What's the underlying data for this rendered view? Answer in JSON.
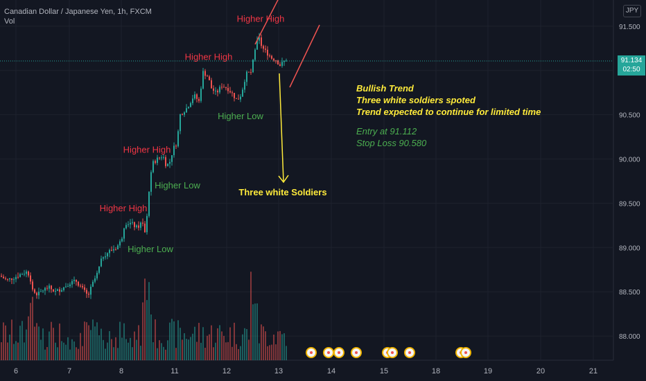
{
  "legend": {
    "symbol": "Canadian Dollar / Japanese Yen, 1h, FXCM",
    "indicator": "Vol"
  },
  "currency": "JPY",
  "last_price": {
    "value": "91.134",
    "countdown": "02:50"
  },
  "note": {
    "line1": "Bullish Trend",
    "line2": "Three white soldiers spoted",
    "line3": "Trend expected to continue for limited time",
    "line4": "Entry at 91.112",
    "line5": "Stop Loss 90.580"
  },
  "colors": {
    "background": "#131722",
    "up": "#26a69a",
    "down": "#ef5350",
    "high_label": "#f23645",
    "low_label": "#4caf50",
    "arrow": "#ffeb3b"
  },
  "chart_data": {
    "type": "candlestick",
    "title": "Canadian Dollar / Japanese Yen, 1h, FXCM",
    "ylim": [
      87.7,
      91.73
    ],
    "y_ticks": [
      91.5,
      91.0,
      90.5,
      90.0,
      89.5,
      89.0,
      88.5,
      88.0
    ],
    "y_tick_labels": [
      "91.500",
      "91.000",
      "90.500",
      "90.000",
      "89.500",
      "89.000",
      "88.500",
      "88.000"
    ],
    "x_ticks": [
      6,
      7,
      8,
      11,
      12,
      13,
      14,
      15,
      18,
      19,
      20,
      21
    ],
    "x_tick_labels": [
      "6",
      "7",
      "8",
      "11",
      "12",
      "13",
      "14",
      "15",
      "18",
      "19",
      "20",
      "21"
    ],
    "close_path": [
      [
        0,
        88.68
      ],
      [
        10,
        88.63
      ],
      [
        20,
        88.66
      ],
      [
        30,
        88.7
      ],
      [
        40,
        88.73
      ],
      [
        44,
        88.62
      ],
      [
        48,
        88.5
      ],
      [
        55,
        88.47
      ],
      [
        62,
        88.52
      ],
      [
        70,
        88.55
      ],
      [
        80,
        88.5
      ],
      [
        90,
        88.54
      ],
      [
        100,
        88.6
      ],
      [
        110,
        88.62
      ],
      [
        120,
        88.52
      ],
      [
        127,
        88.45
      ],
      [
        133,
        88.58
      ],
      [
        140,
        88.7
      ],
      [
        148,
        88.9
      ],
      [
        158,
        88.96
      ],
      [
        168,
        89.0
      ],
      [
        175,
        89.08
      ],
      [
        180,
        89.28
      ],
      [
        190,
        89.27
      ],
      [
        198,
        89.22
      ],
      [
        205,
        89.29
      ],
      [
        210,
        89.14
      ],
      [
        215,
        89.65
      ],
      [
        220,
        89.95
      ],
      [
        227,
        90.0
      ],
      [
        235,
        90.04
      ],
      [
        240,
        89.92
      ],
      [
        245,
        89.97
      ],
      [
        250,
        90.12
      ],
      [
        255,
        90.18
      ],
      [
        260,
        90.5
      ],
      [
        270,
        90.58
      ],
      [
        280,
        90.72
      ],
      [
        287,
        90.65
      ],
      [
        293,
        90.98
      ],
      [
        300,
        90.93
      ],
      [
        305,
        90.8
      ],
      [
        312,
        90.74
      ],
      [
        320,
        90.83
      ],
      [
        328,
        90.8
      ],
      [
        335,
        90.74
      ],
      [
        342,
        90.66
      ],
      [
        348,
        90.73
      ],
      [
        355,
        90.96
      ],
      [
        362,
        90.98
      ],
      [
        368,
        91.22
      ],
      [
        373,
        91.38
      ],
      [
        378,
        91.26
      ],
      [
        385,
        91.2
      ],
      [
        392,
        91.14
      ],
      [
        398,
        91.12
      ],
      [
        404,
        91.06
      ],
      [
        410,
        91.1
      ],
      [
        414,
        91.13
      ]
    ],
    "annotations": [
      {
        "text": "Higher High",
        "x": 376,
        "y": 91.58,
        "color": "red"
      },
      {
        "text": "Higher High",
        "x": 301,
        "y": 91.15,
        "color": "red"
      },
      {
        "text": "Higher Low",
        "x": 347,
        "y": 90.48,
        "color": "green"
      },
      {
        "text": "Higher High",
        "x": 212,
        "y": 90.1,
        "color": "red"
      },
      {
        "text": "Higher Low",
        "x": 256,
        "y": 89.7,
        "color": "green"
      },
      {
        "text": "Higher High",
        "x": 178,
        "y": 89.44,
        "color": "red"
      },
      {
        "text": "Higher Low",
        "x": 217,
        "y": 88.98,
        "color": "green"
      },
      {
        "text": "Three white Soldiers",
        "x": 408,
        "y": 89.62,
        "color": "yellow"
      }
    ],
    "volume": "shown",
    "event_markers_at_x": [
      449,
      474,
      489,
      514,
      559,
      566,
      591,
      665,
      672
    ]
  }
}
